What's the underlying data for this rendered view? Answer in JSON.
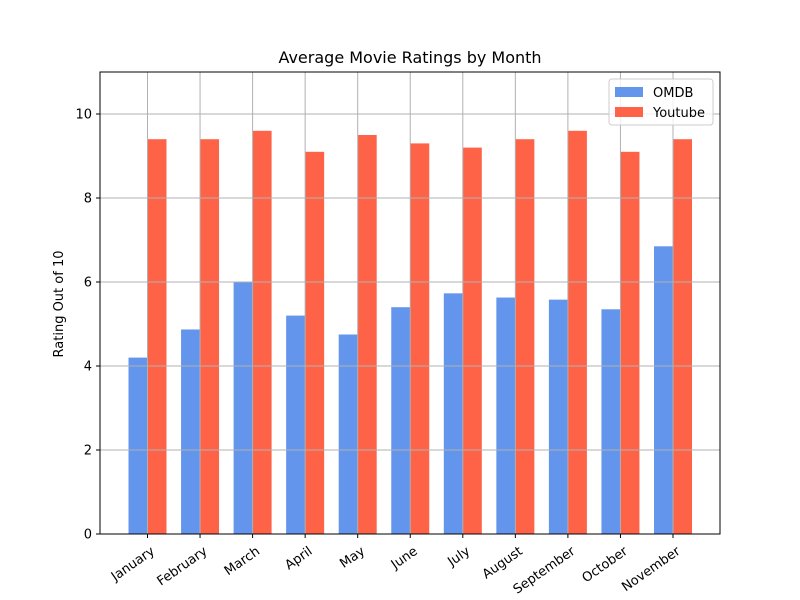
{
  "chart_data": {
    "type": "bar",
    "title": "Average Movie Ratings by Month",
    "xlabel": "",
    "ylabel": "Rating Out of 10",
    "ylim": [
      0,
      11
    ],
    "yticks": [
      0,
      2,
      4,
      6,
      8,
      10
    ],
    "grid": true,
    "legend_position": "top-right",
    "categories": [
      "January",
      "February",
      "March",
      "April",
      "May",
      "June",
      "July",
      "August",
      "September",
      "October",
      "November"
    ],
    "series": [
      {
        "name": "OMDB",
        "color": "#6495ED",
        "values": [
          4.2,
          4.87,
          6.0,
          5.2,
          4.75,
          5.4,
          5.73,
          5.63,
          5.58,
          5.35,
          6.85
        ]
      },
      {
        "name": "Youtube",
        "color": "#FF6347",
        "values": [
          9.4,
          9.4,
          9.6,
          9.1,
          9.5,
          9.3,
          9.2,
          9.4,
          9.6,
          9.1,
          9.4
        ]
      }
    ]
  }
}
